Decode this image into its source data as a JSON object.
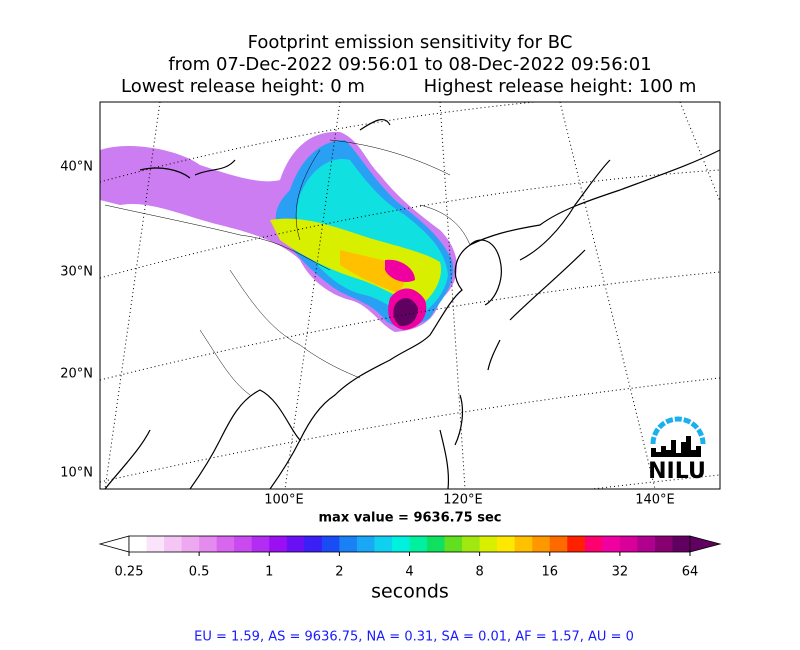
{
  "map": {
    "title": [
      "Footprint emission sensitivity for BC",
      "from 07-Dec-2022 09:56:01 to 08-Dec-2022 09:56:01"
    ],
    "release_low": "Lowest release height: 0 m",
    "release_high": "Highest release height: 100 m",
    "lat_labels": [
      "40°N",
      "30°N",
      "20°N",
      "10°N"
    ],
    "lon_labels": [
      "100°E",
      "120°E",
      "140°E"
    ],
    "max_value": "max value = 9636.75 sec",
    "logo": "NILU",
    "footer": "EU = 1.59,  AS = 9636.75,  NA = 0.31,  SA = 0.01,  AF = 1.57,  AU = 0"
  },
  "chart_data": {
    "type": "colorbar",
    "log": true,
    "xlim": [
      0.25,
      64
    ],
    "xticks": [
      0.25,
      0.5,
      1,
      2,
      4,
      8,
      16,
      32,
      64
    ],
    "xlabel": "seconds",
    "colors": [
      "#ffffff",
      "#fbe3fb",
      "#f5c6f5",
      "#eea8f0",
      "#e58aee",
      "#d966ee",
      "#c94bf0",
      "#b22cf2",
      "#9a10f3",
      "#6a10f5",
      "#3a20f5",
      "#1a4cf5",
      "#1a80f5",
      "#18a8f5",
      "#10d0f0",
      "#00f0e0",
      "#00f0a0",
      "#10e060",
      "#60e020",
      "#a0e810",
      "#d8f000",
      "#ffe800",
      "#ffc000",
      "#ff9800",
      "#ff6a00",
      "#ff2000",
      "#ff0070",
      "#f000a0",
      "#d80098",
      "#b00090",
      "#880070",
      "#600060"
    ]
  }
}
